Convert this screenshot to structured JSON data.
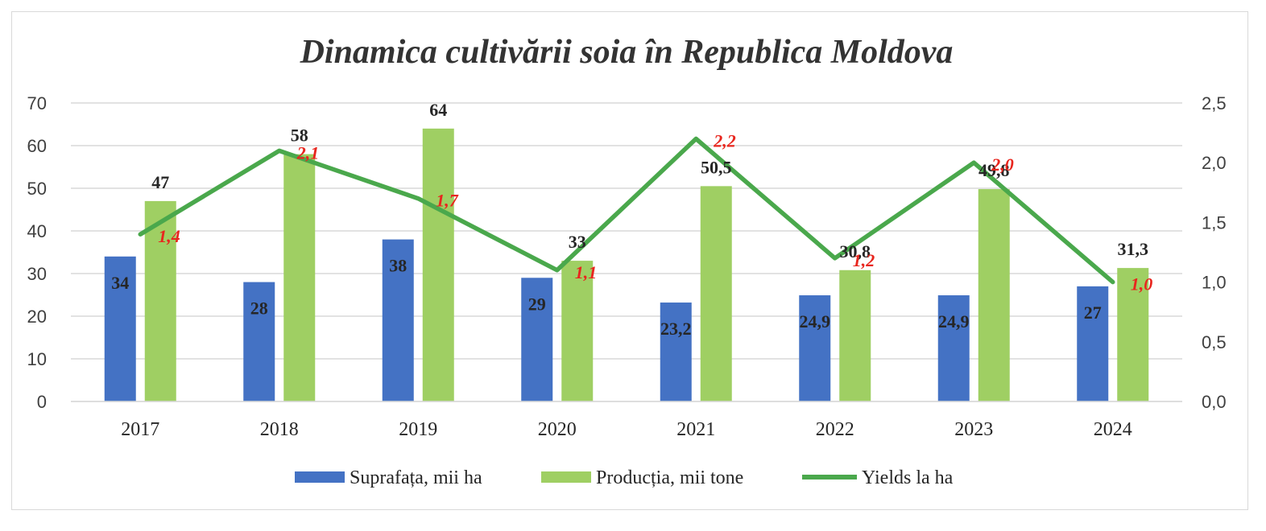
{
  "chart_data": {
    "type": "bar",
    "title": "Dinamica cultivării soia în Republica Moldova",
    "categories": [
      "2017",
      "2018",
      "2019",
      "2020",
      "2021",
      "2022",
      "2023",
      "2024"
    ],
    "y_left": {
      "min": 0,
      "max": 70,
      "step": 10,
      "ticks": [
        "0",
        "10",
        "20",
        "30",
        "40",
        "50",
        "60",
        "70"
      ]
    },
    "y_right": {
      "min": 0,
      "max": 2.5,
      "step": 0.5,
      "ticks": [
        "0,0",
        "0,5",
        "1,0",
        "1,5",
        "2,0",
        "2,5"
      ]
    },
    "grid": true,
    "legend_position": "bottom",
    "series": [
      {
        "name": "Suprafața, mii ha",
        "kind": "bar",
        "axis": "left",
        "color": "#4472c4",
        "values": [
          34,
          28,
          38,
          29,
          23.2,
          24.9,
          24.9,
          27
        ],
        "labels": [
          "34",
          "28",
          "38",
          "29",
          "23,2",
          "24,9",
          "24,9",
          "27"
        ]
      },
      {
        "name": "Producția, mii tone",
        "kind": "bar",
        "axis": "left",
        "color": "#9fcf63",
        "values": [
          47,
          58,
          64,
          33,
          50.5,
          30.8,
          49.8,
          31.3
        ],
        "labels": [
          "47",
          "58",
          "64",
          "33",
          "50,5",
          "30,8",
          "49,8",
          "31,3"
        ]
      },
      {
        "name": "Yields la ha",
        "kind": "line",
        "axis": "right",
        "color": "#4aa84c",
        "values": [
          1.4,
          2.1,
          1.7,
          1.1,
          2.2,
          1.2,
          2.0,
          1.0
        ],
        "labels": [
          "1,4",
          "2,1",
          "1,7",
          "1,1",
          "2,2",
          "1,2",
          "2,0",
          "1,0"
        ]
      }
    ]
  }
}
